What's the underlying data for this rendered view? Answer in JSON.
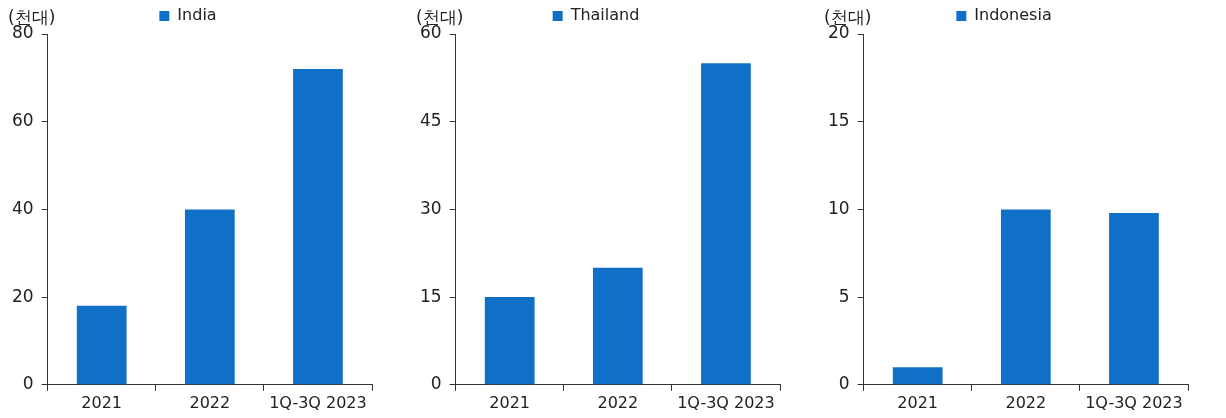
{
  "chart_data": [
    {
      "type": "bar",
      "ylabel": "(천대)",
      "categories": [
        "2021",
        "2022",
        "1Q-3Q 2023"
      ],
      "legend": "top",
      "ylim": [
        0,
        80
      ],
      "yticks": [
        0,
        20,
        40,
        60,
        80
      ],
      "series": [
        {
          "name": "India",
          "color": "#1070c8",
          "values": [
            18,
            40,
            72
          ]
        }
      ]
    },
    {
      "type": "bar",
      "ylabel": "(천대)",
      "categories": [
        "2021",
        "2022",
        "1Q-3Q 2023"
      ],
      "legend": "top",
      "ylim": [
        0,
        60
      ],
      "yticks": [
        0,
        15,
        30,
        45,
        60
      ],
      "series": [
        {
          "name": "Thailand",
          "color": "#1070c8",
          "values": [
            15,
            20,
            55
          ]
        }
      ]
    },
    {
      "type": "bar",
      "ylabel": "(천대)",
      "categories": [
        "2021",
        "2022",
        "1Q-3Q 2023"
      ],
      "legend": "top",
      "ylim": [
        0,
        20
      ],
      "yticks": [
        0,
        5,
        10,
        15,
        20
      ],
      "series": [
        {
          "name": "Indonesia",
          "color": "#1070c8",
          "values": [
            1,
            10,
            9.8
          ]
        }
      ]
    }
  ]
}
